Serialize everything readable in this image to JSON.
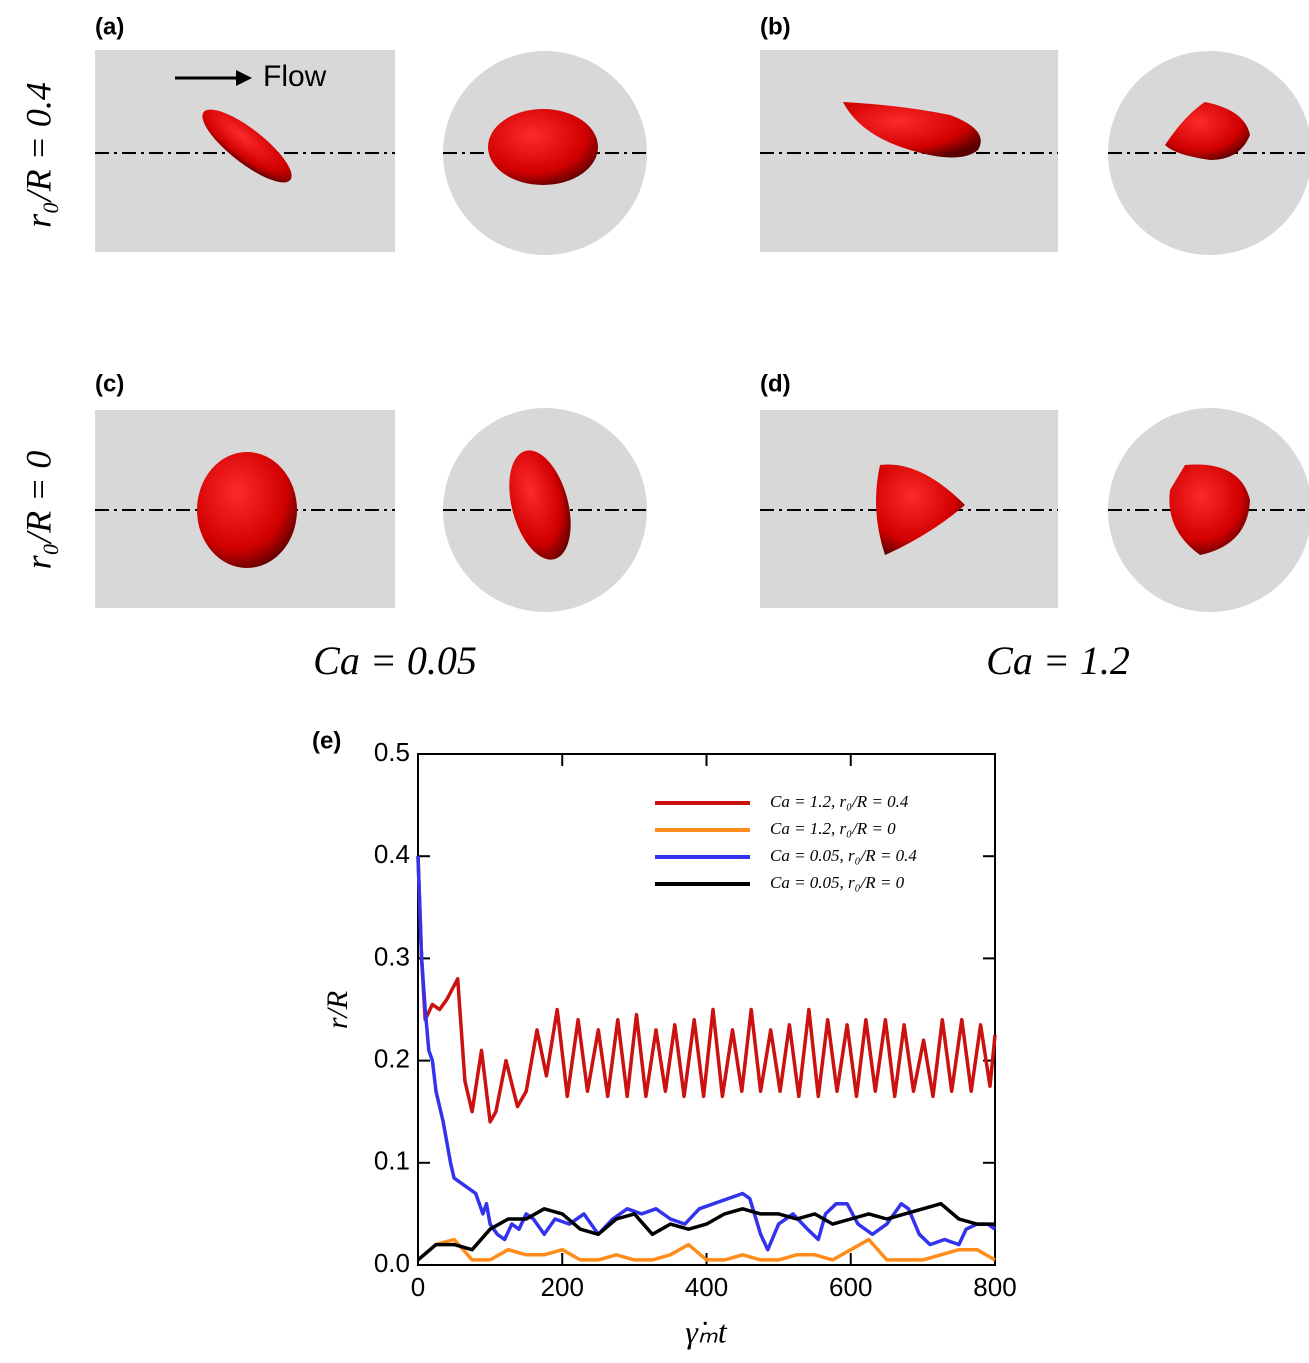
{
  "panels": [
    {
      "label": "(a)"
    },
    {
      "label": "(b)"
    },
    {
      "label": "(c)"
    },
    {
      "label": "(d)"
    }
  ],
  "flow_label": "Flow",
  "row_labels": [
    "r₀/R = 0.4",
    "r₀/R = 0"
  ],
  "column_labels": [
    "Ca = 0.05",
    "Ca = 1.2"
  ],
  "chart_data": {
    "type": "line",
    "panel_label": "(e)",
    "x_label": "γ̇ₘt",
    "y_label": "r/R",
    "xlim": [
      0,
      800
    ],
    "xticks": [
      0,
      200,
      400,
      600,
      800
    ],
    "ylim": [
      0,
      0.5
    ],
    "yticks": [
      {
        "value": 0,
        "label": "0.0"
      },
      0.1,
      0.2,
      0.3,
      0.4,
      0.5
    ],
    "legend": "upper right",
    "series": [
      {
        "name": "Ca = 1.2,   r₀/R = 0.4",
        "color": "#cc1111",
        "x": [
          0,
          5,
          10,
          20,
          30,
          40,
          55,
          65,
          75,
          88,
          100,
          108,
          122,
          138,
          150,
          165,
          178,
          193,
          207,
          222,
          235,
          250,
          263,
          277,
          290,
          303,
          316,
          330,
          343,
          356,
          369,
          383,
          396,
          409,
          422,
          436,
          449,
          462,
          475,
          489,
          502,
          515,
          528,
          542,
          555,
          568,
          581,
          595,
          608,
          621,
          634,
          648,
          661,
          674,
          687,
          701,
          714,
          727,
          740,
          754,
          767,
          780,
          793,
          800
        ],
        "values": [
          0.4,
          0.3,
          0.24,
          0.255,
          0.25,
          0.26,
          0.28,
          0.18,
          0.15,
          0.21,
          0.14,
          0.15,
          0.2,
          0.155,
          0.17,
          0.23,
          0.185,
          0.25,
          0.165,
          0.24,
          0.17,
          0.23,
          0.165,
          0.24,
          0.165,
          0.245,
          0.165,
          0.23,
          0.17,
          0.235,
          0.165,
          0.24,
          0.165,
          0.25,
          0.165,
          0.23,
          0.17,
          0.25,
          0.17,
          0.23,
          0.17,
          0.235,
          0.165,
          0.25,
          0.165,
          0.24,
          0.17,
          0.235,
          0.165,
          0.24,
          0.17,
          0.24,
          0.165,
          0.235,
          0.17,
          0.22,
          0.165,
          0.24,
          0.17,
          0.24,
          0.17,
          0.235,
          0.175,
          0.225
        ]
      },
      {
        "name": "Ca = 1.2,   r₀/R = 0",
        "color": "#ff8c1a",
        "x": [
          0,
          25,
          50,
          75,
          100,
          125,
          150,
          175,
          200,
          225,
          250,
          275,
          300,
          325,
          350,
          375,
          400,
          425,
          450,
          475,
          500,
          525,
          550,
          575,
          600,
          625,
          650,
          675,
          700,
          725,
          750,
          775,
          800
        ],
        "values": [
          0.005,
          0.02,
          0.025,
          0.005,
          0.005,
          0.015,
          0.01,
          0.01,
          0.015,
          0.005,
          0.005,
          0.01,
          0.005,
          0.005,
          0.01,
          0.02,
          0.005,
          0.005,
          0.01,
          0.005,
          0.005,
          0.01,
          0.01,
          0.005,
          0.015,
          0.025,
          0.005,
          0.005,
          0.005,
          0.01,
          0.015,
          0.015,
          0.005
        ]
      },
      {
        "name": "Ca = 0.05, r₀/R = 0.4",
        "color": "#3333ee",
        "x": [
          0,
          5,
          10,
          15,
          20,
          25,
          30,
          35,
          40,
          45,
          50,
          60,
          70,
          80,
          85,
          90,
          95,
          100,
          110,
          120,
          130,
          140,
          150,
          160,
          175,
          190,
          210,
          230,
          250,
          270,
          290,
          310,
          330,
          350,
          370,
          390,
          410,
          430,
          450,
          460,
          475,
          485,
          500,
          520,
          540,
          555,
          565,
          580,
          595,
          610,
          630,
          650,
          670,
          680,
          695,
          710,
          730,
          750,
          760,
          775,
          790,
          800
        ],
        "values": [
          0.4,
          0.3,
          0.25,
          0.21,
          0.2,
          0.17,
          0.155,
          0.14,
          0.12,
          0.1,
          0.085,
          0.08,
          0.075,
          0.07,
          0.06,
          0.05,
          0.06,
          0.04,
          0.03,
          0.025,
          0.04,
          0.035,
          0.05,
          0.045,
          0.03,
          0.045,
          0.04,
          0.05,
          0.03,
          0.045,
          0.055,
          0.05,
          0.055,
          0.045,
          0.04,
          0.055,
          0.06,
          0.065,
          0.07,
          0.065,
          0.03,
          0.015,
          0.04,
          0.05,
          0.035,
          0.025,
          0.05,
          0.06,
          0.06,
          0.04,
          0.03,
          0.04,
          0.06,
          0.055,
          0.03,
          0.02,
          0.025,
          0.02,
          0.035,
          0.04,
          0.04,
          0.035
        ]
      },
      {
        "name": "Ca = 0.05, r₀/R = 0",
        "color": "#000000",
        "x": [
          0,
          25,
          50,
          75,
          100,
          125,
          150,
          175,
          200,
          225,
          250,
          275,
          300,
          325,
          350,
          375,
          400,
          425,
          450,
          475,
          500,
          525,
          550,
          575,
          600,
          625,
          650,
          675,
          700,
          725,
          750,
          775,
          800
        ],
        "values": [
          0.005,
          0.02,
          0.02,
          0.015,
          0.035,
          0.045,
          0.045,
          0.055,
          0.05,
          0.035,
          0.03,
          0.045,
          0.05,
          0.03,
          0.04,
          0.035,
          0.04,
          0.05,
          0.055,
          0.05,
          0.05,
          0.045,
          0.05,
          0.04,
          0.045,
          0.05,
          0.045,
          0.05,
          0.055,
          0.06,
          0.045,
          0.04,
          0.04
        ]
      }
    ]
  }
}
